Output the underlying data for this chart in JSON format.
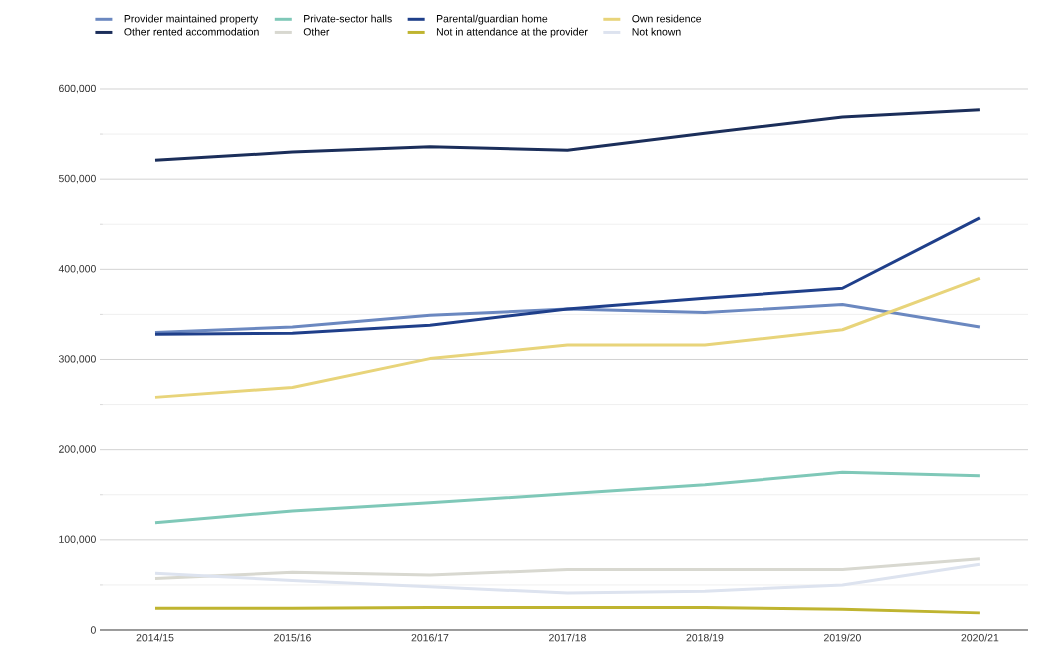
{
  "chart_data": {
    "type": "line",
    "categories": [
      "2014/15",
      "2015/16",
      "2016/17",
      "2017/18",
      "2018/19",
      "2019/20",
      "2020/21"
    ],
    "series": [
      {
        "name": "Provider maintained property",
        "color": "#6b88c0",
        "values": [
          330000,
          336000,
          349000,
          356000,
          352000,
          361000,
          336000
        ]
      },
      {
        "name": "Private-sector halls",
        "color": "#7fc8b8",
        "values": [
          119000,
          132000,
          141000,
          151000,
          161000,
          175000,
          171000
        ]
      },
      {
        "name": "Parental/guardian home",
        "color": "#1f3f8a",
        "values": [
          328000,
          329000,
          338000,
          356000,
          368000,
          379000,
          457000
        ]
      },
      {
        "name": "Own residence",
        "color": "#e8d47a",
        "values": [
          258000,
          269000,
          301000,
          316000,
          316000,
          333000,
          390000
        ]
      },
      {
        "name": "Other rented accommodation",
        "color": "#1b2e5a",
        "values": [
          521000,
          530000,
          536000,
          532000,
          551000,
          569000,
          577000
        ]
      },
      {
        "name": "Other",
        "color": "#d8d8d0",
        "values": [
          57000,
          64000,
          61000,
          67000,
          67000,
          67000,
          79000
        ]
      },
      {
        "name": "Not in attendance at the provider",
        "color": "#bfb430",
        "values": [
          24000,
          24000,
          25000,
          25000,
          25000,
          23000,
          19000
        ]
      },
      {
        "name": "Not known",
        "color": "#dde3ef",
        "values": [
          63000,
          55000,
          48000,
          41000,
          43000,
          50000,
          73000
        ]
      }
    ],
    "ylim": [
      0,
      600000
    ],
    "yticks": [
      {
        "value": 0,
        "label": "0"
      },
      {
        "value": 100000,
        "label": "100,000"
      },
      {
        "value": 200000,
        "label": "200,000"
      },
      {
        "value": 300000,
        "label": "300,000"
      },
      {
        "value": 400000,
        "label": "400,000"
      },
      {
        "value": 500000,
        "label": "500,000"
      },
      {
        "value": 600000,
        "label": "600,000"
      }
    ],
    "grid": "y",
    "legend": "top",
    "marker": "none",
    "line_style": "solid"
  }
}
